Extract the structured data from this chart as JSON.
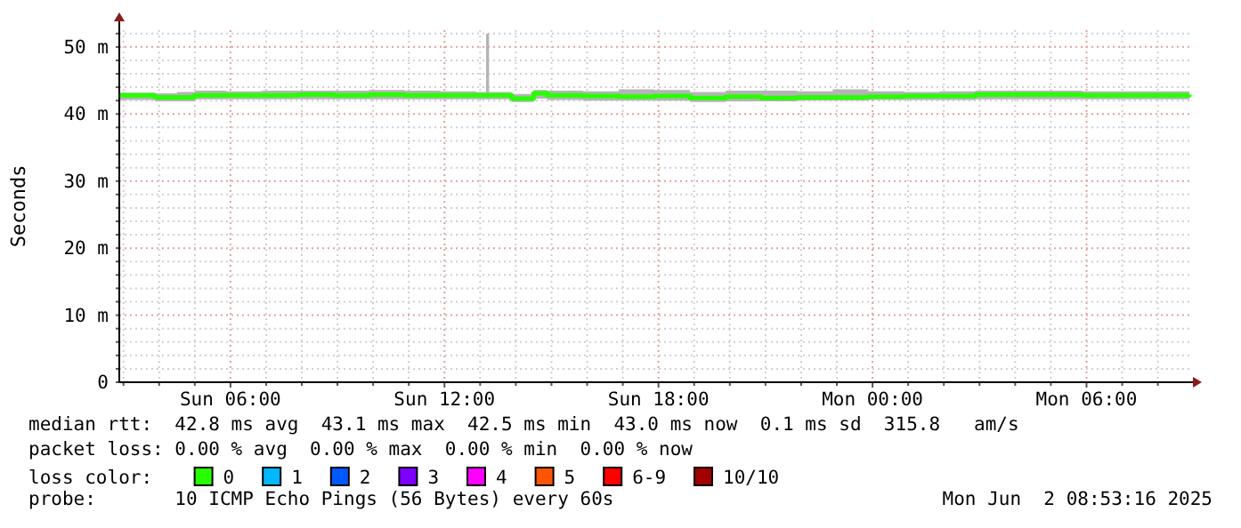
{
  "chart_data": {
    "type": "line",
    "ylabel": "Seconds",
    "legend_title": "loss color:",
    "legend": "bottom",
    "grid": true,
    "marker": "none",
    "line_style": "solid",
    "xlim": [
      "2025-06-01T02:53",
      "2025-06-02T08:53"
    ],
    "ylim": [
      0,
      52.5
    ],
    "xticks": [
      {
        "value": "2025-06-01T03:00",
        "label": null
      },
      {
        "value": "2025-06-01T04:00",
        "label": null
      },
      {
        "value": "2025-06-01T05:00",
        "label": null
      },
      {
        "value": "2025-06-01T06:00",
        "label": "Sun 06:00"
      },
      {
        "value": "2025-06-01T07:00",
        "label": null
      },
      {
        "value": "2025-06-01T08:00",
        "label": null
      },
      {
        "value": "2025-06-01T09:00",
        "label": null
      },
      {
        "value": "2025-06-01T10:00",
        "label": null
      },
      {
        "value": "2025-06-01T11:00",
        "label": null
      },
      {
        "value": "2025-06-01T12:00",
        "label": "Sun 12:00"
      },
      {
        "value": "2025-06-01T13:00",
        "label": null
      },
      {
        "value": "2025-06-01T14:00",
        "label": null
      },
      {
        "value": "2025-06-01T15:00",
        "label": null
      },
      {
        "value": "2025-06-01T16:00",
        "label": null
      },
      {
        "value": "2025-06-01T17:00",
        "label": null
      },
      {
        "value": "2025-06-01T18:00",
        "label": "Sun 18:00"
      },
      {
        "value": "2025-06-01T19:00",
        "label": null
      },
      {
        "value": "2025-06-01T20:00",
        "label": null
      },
      {
        "value": "2025-06-01T21:00",
        "label": null
      },
      {
        "value": "2025-06-01T22:00",
        "label": null
      },
      {
        "value": "2025-06-01T23:00",
        "label": null
      },
      {
        "value": "2025-06-02T00:00",
        "label": "Mon 00:00"
      },
      {
        "value": "2025-06-02T01:00",
        "label": null
      },
      {
        "value": "2025-06-02T02:00",
        "label": null
      },
      {
        "value": "2025-06-02T03:00",
        "label": null
      },
      {
        "value": "2025-06-02T04:00",
        "label": null
      },
      {
        "value": "2025-06-02T05:00",
        "label": null
      },
      {
        "value": "2025-06-02T06:00",
        "label": "Mon 06:00"
      },
      {
        "value": "2025-06-02T07:00",
        "label": null
      },
      {
        "value": "2025-06-02T08:00",
        "label": null
      }
    ],
    "yticks": [
      {
        "value": 0,
        "label": "0"
      },
      {
        "value": 2,
        "label": null
      },
      {
        "value": 4,
        "label": null
      },
      {
        "value": 6,
        "label": null
      },
      {
        "value": 8,
        "label": null
      },
      {
        "value": 10,
        "label": "10 m"
      },
      {
        "value": 12,
        "label": null
      },
      {
        "value": 14,
        "label": null
      },
      {
        "value": 16,
        "label": null
      },
      {
        "value": 18,
        "label": null
      },
      {
        "value": 20,
        "label": "20 m"
      },
      {
        "value": 22,
        "label": null
      },
      {
        "value": 24,
        "label": null
      },
      {
        "value": 26,
        "label": null
      },
      {
        "value": 28,
        "label": null
      },
      {
        "value": 30,
        "label": "30 m"
      },
      {
        "value": 32,
        "label": null
      },
      {
        "value": 34,
        "label": null
      },
      {
        "value": 36,
        "label": null
      },
      {
        "value": 38,
        "label": null
      },
      {
        "value": 40,
        "label": "40 m"
      },
      {
        "value": 42,
        "label": null
      },
      {
        "value": 44,
        "label": null
      },
      {
        "value": 46,
        "label": null
      },
      {
        "value": 48,
        "label": null
      },
      {
        "value": 50,
        "label": "50 m"
      },
      {
        "value": 52,
        "label": null
      }
    ],
    "series": [
      {
        "name": "0",
        "color": "#26ff00",
        "x": [
          "2025-06-01T02:53",
          "2025-06-01T03:53",
          "2025-06-01T04:30",
          "2025-06-01T05:00",
          "2025-06-01T05:53",
          "2025-06-01T06:53",
          "2025-06-01T07:53",
          "2025-06-01T08:53",
          "2025-06-01T09:53",
          "2025-06-01T10:53",
          "2025-06-01T11:53",
          "2025-06-01T12:53",
          "2025-06-01T13:05",
          "2025-06-01T13:10",
          "2025-06-01T13:15",
          "2025-06-01T13:53",
          "2025-06-01T14:30",
          "2025-06-01T14:53",
          "2025-06-01T15:53",
          "2025-06-01T16:53",
          "2025-06-01T17:53",
          "2025-06-01T18:53",
          "2025-06-01T19:53",
          "2025-06-01T20:53",
          "2025-06-01T21:53",
          "2025-06-01T22:53",
          "2025-06-01T23:53",
          "2025-06-02T00:53",
          "2025-06-02T01:53",
          "2025-06-02T02:53",
          "2025-06-02T03:53",
          "2025-06-02T04:53",
          "2025-06-02T05:53",
          "2025-06-02T06:53",
          "2025-06-02T07:53",
          "2025-06-02T08:53"
        ],
        "values": [
          42.8,
          42.5,
          42.5,
          42.8,
          42.8,
          42.8,
          42.9,
          42.8,
          42.9,
          42.8,
          42.8,
          42.8,
          42.8,
          42.8,
          42.8,
          42.3,
          43.1,
          42.8,
          42.7,
          42.6,
          42.7,
          42.4,
          42.6,
          42.4,
          42.5,
          42.5,
          42.6,
          42.7,
          42.7,
          42.9,
          42.9,
          42.9,
          42.8,
          42.8,
          42.8,
          42.9
        ],
        "lower": [
          42.1,
          41.9,
          41.9,
          42.2,
          42.2,
          42.2,
          42.2,
          42.2,
          42.2,
          42.2,
          42.2,
          42.2,
          42.2,
          42.2,
          42.2,
          41.8,
          42.3,
          42.1,
          42.0,
          42.0,
          42.0,
          41.8,
          41.9,
          41.9,
          42.0,
          42.0,
          42.1,
          42.1,
          42.1,
          42.2,
          42.2,
          42.2,
          42.2,
          42.2,
          42.2,
          42.3
        ],
        "upper": [
          43.2,
          43.1,
          43.3,
          43.5,
          43.4,
          43.5,
          43.5,
          43.5,
          43.6,
          43.5,
          43.4,
          43.3,
          43.3,
          52.0,
          43.3,
          43.0,
          43.6,
          43.5,
          43.4,
          43.7,
          43.6,
          43.3,
          43.5,
          43.5,
          43.4,
          43.7,
          43.4,
          43.3,
          43.4,
          43.5,
          43.5,
          43.5,
          43.4,
          43.4,
          43.4,
          43.5
        ]
      },
      {
        "name": "1",
        "color": "#00b8ff"
      },
      {
        "name": "2",
        "color": "#0059ff"
      },
      {
        "name": "3",
        "color": "#7e00ff"
      },
      {
        "name": "4",
        "color": "#ff00ff"
      },
      {
        "name": "5",
        "color": "#ff5500"
      },
      {
        "name": "6-9",
        "color": "#ff0000"
      },
      {
        "name": "10/10",
        "color": "#a10000"
      }
    ],
    "annotations": [
      "median rtt:  42.8 ms avg  43.1 ms max  42.5 ms min  43.0 ms now  0.1 ms sd  315.8   am/s",
      "packet loss: 0.00 % avg  0.00 % max  0.00 % min  0.00 % now",
      "probe:       10 ICMP Echo Pings (56 Bytes) every 60s",
      "Mon Jun  2 08:53:16 2025"
    ]
  }
}
